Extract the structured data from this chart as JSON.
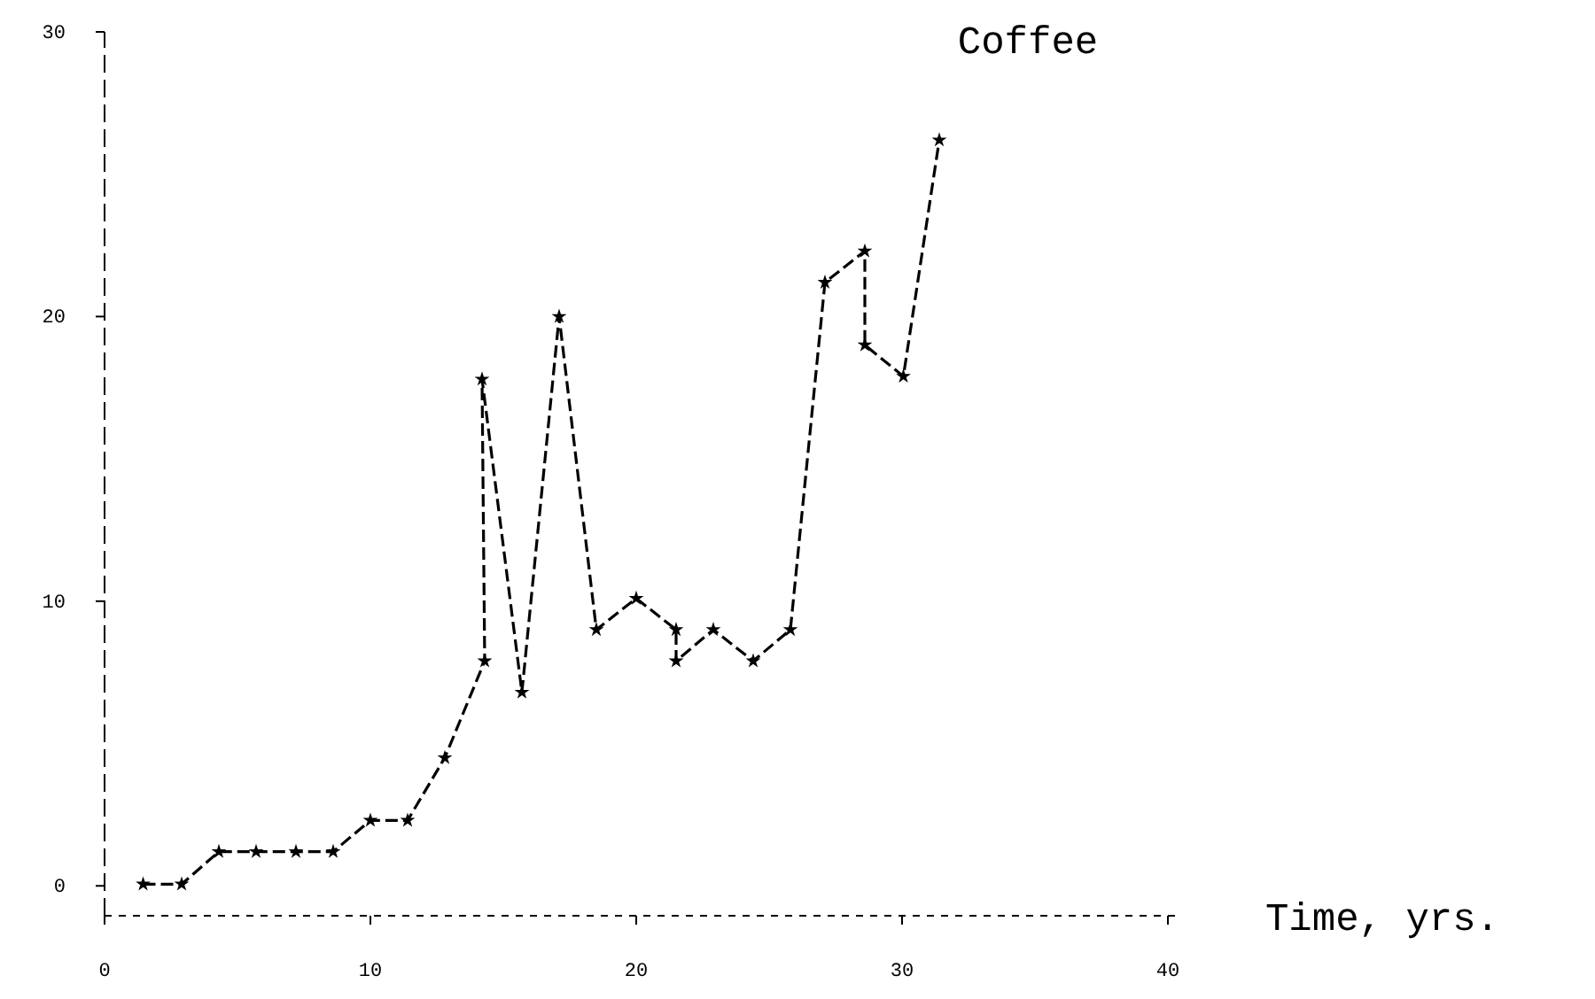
{
  "chart_data": {
    "type": "line",
    "title": "Coffee",
    "xlabel": "Time, yrs.",
    "x": [
      1.45,
      2.9,
      4.3,
      5.7,
      7.2,
      8.6,
      10.0,
      11.4,
      12.8,
      14.3,
      14.2,
      15.7,
      17.1,
      18.5,
      20.0,
      21.5,
      21.5,
      22.9,
      24.4,
      25.8,
      27.1,
      28.6,
      28.6,
      30.05,
      31.4
    ],
    "series": [
      {
        "color": "#000000",
        "values": [
          0.06,
          0.06,
          1.2,
          1.2,
          1.2,
          1.2,
          2.3,
          2.3,
          4.5,
          7.9,
          17.8,
          6.8,
          20.0,
          9.0,
          10.1,
          9.0,
          7.9,
          9.0,
          7.9,
          9.0,
          21.2,
          22.3,
          19.0,
          17.9,
          26.2
        ]
      }
    ],
    "xlim": [
      0,
      40.4
    ],
    "ylim": [
      -1.05,
      30
    ],
    "xticks": [
      0,
      10,
      20,
      30,
      40
    ],
    "yticks": [
      0,
      10,
      20,
      30
    ],
    "marker": "star",
    "line_style": "dashed",
    "grid": false,
    "legend": false
  }
}
